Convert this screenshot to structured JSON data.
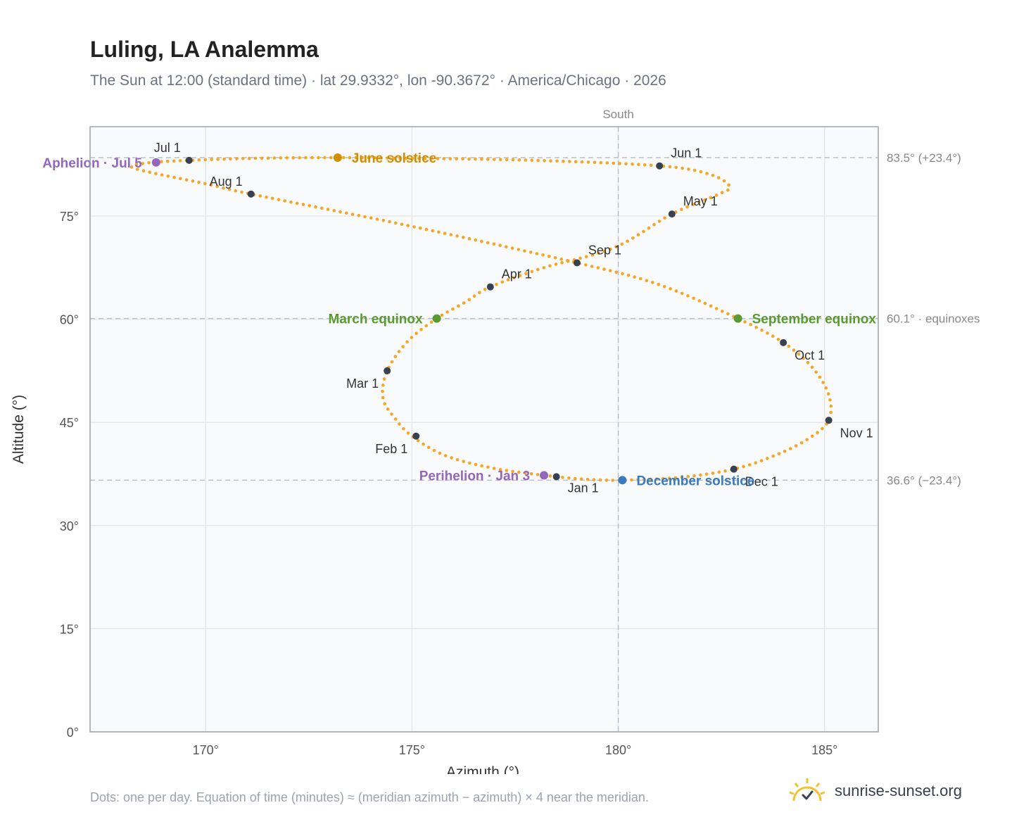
{
  "header": {
    "title": "Luling, LA Analemma",
    "subtitle": "The Sun at 12:00 (standard time) · lat 29.9332°, lon -90.3672° · America/Chicago · 2026"
  },
  "footer": {
    "note": "Dots: one per day. Equation of time (minutes) ≈ (meridian azimuth − azimuth) × 4 near the meridian.",
    "brand": "sunrise-sunset.org",
    "brand_icon": "sun-check-logo-icon"
  },
  "colors": {
    "path": "#f5a623",
    "month_marker": "#374151",
    "equinox": "#5a9a2e",
    "june_solstice": "#d18f00",
    "december_solstice": "#3a7bbf",
    "apsis": "#9467bd",
    "plot_bg": "#f8fafc",
    "grid": "#e5e7eb",
    "reference_line": "#b6c2cc"
  },
  "chart_data": {
    "type": "scatter",
    "title": "Luling, LA Analemma",
    "xlabel": "Azimuth (°)",
    "ylabel": "Altitude (°)",
    "xlim": [
      167.2,
      186.3
    ],
    "ylim": [
      0,
      88
    ],
    "xticks": [
      170,
      175,
      180,
      185
    ],
    "yticks": [
      0,
      15,
      30,
      45,
      60,
      75
    ],
    "x_tick_labels": [
      "170°",
      "175°",
      "180°",
      "185°"
    ],
    "y_tick_labels": [
      "0°",
      "15°",
      "30°",
      "45°",
      "60°",
      "75°"
    ],
    "grid": true,
    "south_azimuth": 180,
    "south_label": "South",
    "reference_lines": [
      {
        "altitude": 83.5,
        "label": "83.5° (+23.4°)"
      },
      {
        "altitude": 60.1,
        "label": "60.1° · equinoxes"
      },
      {
        "altitude": 36.6,
        "label": "36.6° (−23.4°)"
      }
    ],
    "path_anchors": [
      {
        "az": 178.5,
        "alt": 37.1
      },
      {
        "az": 177.0,
        "alt": 38.3
      },
      {
        "az": 175.8,
        "alt": 40.2
      },
      {
        "az": 175.0,
        "alt": 43.0
      },
      {
        "az": 174.6,
        "alt": 45.5
      },
      {
        "az": 174.3,
        "alt": 48.5
      },
      {
        "az": 174.4,
        "alt": 52.5
      },
      {
        "az": 174.9,
        "alt": 56.8
      },
      {
        "az": 175.6,
        "alt": 60.1
      },
      {
        "az": 176.3,
        "alt": 62.5
      },
      {
        "az": 176.9,
        "alt": 64.7
      },
      {
        "az": 178.2,
        "alt": 67.5
      },
      {
        "az": 179.9,
        "alt": 70.4
      },
      {
        "az": 181.3,
        "alt": 75.3
      },
      {
        "az": 182.4,
        "alt": 78.1
      },
      {
        "az": 182.7,
        "alt": 79.3
      },
      {
        "az": 182.2,
        "alt": 81.1
      },
      {
        "az": 181.0,
        "alt": 82.3
      },
      {
        "az": 178.0,
        "alt": 83.1
      },
      {
        "az": 175.0,
        "alt": 83.4
      },
      {
        "az": 173.2,
        "alt": 83.5
      },
      {
        "az": 171.2,
        "alt": 83.4
      },
      {
        "az": 169.6,
        "alt": 83.1
      },
      {
        "az": 168.7,
        "alt": 82.8
      },
      {
        "az": 168.2,
        "alt": 82.2
      },
      {
        "az": 168.7,
        "alt": 81.3
      },
      {
        "az": 170.0,
        "alt": 79.7
      },
      {
        "az": 171.1,
        "alt": 78.2
      },
      {
        "az": 175.0,
        "alt": 73.5
      },
      {
        "az": 179.0,
        "alt": 68.2
      },
      {
        "az": 181.0,
        "alt": 65.0
      },
      {
        "az": 182.9,
        "alt": 60.1
      },
      {
        "az": 184.0,
        "alt": 56.6
      },
      {
        "az": 184.7,
        "alt": 53.0
      },
      {
        "az": 185.1,
        "alt": 49.0
      },
      {
        "az": 185.1,
        "alt": 45.3
      },
      {
        "az": 184.6,
        "alt": 42.6
      },
      {
        "az": 183.8,
        "alt": 40.2
      },
      {
        "az": 182.8,
        "alt": 38.2
      },
      {
        "az": 181.5,
        "alt": 37.0
      },
      {
        "az": 180.1,
        "alt": 36.6
      },
      {
        "az": 179.3,
        "alt": 36.7
      },
      {
        "az": 178.5,
        "alt": 37.1
      }
    ],
    "month_markers": [
      {
        "label": "Jan 1",
        "az": 178.5,
        "alt": 37.1,
        "label_pos": "below"
      },
      {
        "label": "Feb 1",
        "az": 175.1,
        "alt": 43.0,
        "label_pos": "below-left"
      },
      {
        "label": "Mar 1",
        "az": 174.4,
        "alt": 52.5,
        "label_pos": "below-left"
      },
      {
        "label": "Apr 1",
        "az": 176.9,
        "alt": 64.7,
        "label_pos": "above-right"
      },
      {
        "label": "May 1",
        "az": 181.3,
        "alt": 75.3,
        "label_pos": "above-right"
      },
      {
        "label": "Jun 1",
        "az": 181.0,
        "alt": 82.3,
        "label_pos": "above-right"
      },
      {
        "label": "Jul 1",
        "az": 169.6,
        "alt": 83.1,
        "label_pos": "above-left"
      },
      {
        "label": "Aug 1",
        "az": 171.1,
        "alt": 78.2,
        "label_pos": "above-left"
      },
      {
        "label": "Sep 1",
        "az": 179.0,
        "alt": 68.2,
        "label_pos": "above-right"
      },
      {
        "label": "Oct 1",
        "az": 184.0,
        "alt": 56.6,
        "label_pos": "below-right"
      },
      {
        "label": "Nov 1",
        "az": 185.1,
        "alt": 45.3,
        "label_pos": "below-right"
      },
      {
        "label": "Dec 1",
        "az": 182.8,
        "alt": 38.2,
        "label_pos": "below-right"
      }
    ],
    "events": [
      {
        "label": "March equinox",
        "az": 175.6,
        "alt": 60.1,
        "color": "#5a9a2e",
        "label_side": "left"
      },
      {
        "label": "September equinox",
        "az": 182.9,
        "alt": 60.1,
        "color": "#5a9a2e",
        "label_side": "right"
      },
      {
        "label": "June solstice",
        "az": 173.2,
        "alt": 83.5,
        "color": "#d18f00",
        "label_side": "right"
      },
      {
        "label": "December solstice",
        "az": 180.1,
        "alt": 36.6,
        "color": "#3a7bbf",
        "label_side": "right"
      },
      {
        "label": "Aphelion · Jul 5",
        "az": 168.8,
        "alt": 82.8,
        "color": "#9467bd",
        "label_side": "left"
      },
      {
        "label": "Perihelion · Jan 3",
        "az": 178.2,
        "alt": 37.3,
        "color": "#9467bd",
        "label_side": "left"
      }
    ]
  }
}
